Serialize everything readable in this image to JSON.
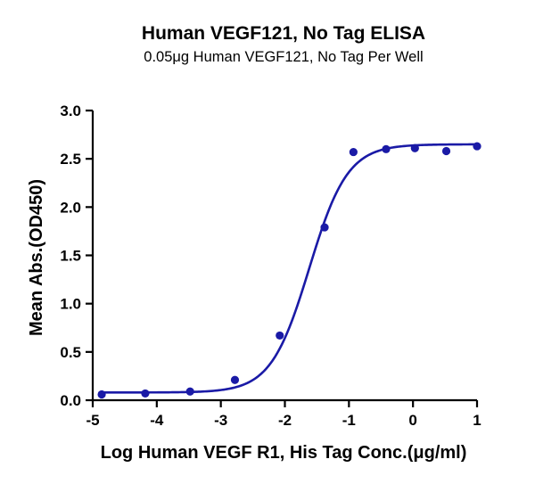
{
  "chart_data": {
    "type": "scatter",
    "title": "Human VEGF121, No Tag ELISA",
    "subtitle": "0.05μg Human VEGF121, No Tag Per Well",
    "xlabel": "Log Human VEGF R1, His Tag Conc.(μg/ml)",
    "ylabel": "Mean Abs.(OD450)",
    "xlim": [
      -5,
      1
    ],
    "ylim": [
      0,
      3.0
    ],
    "x_ticks": [
      -5,
      -4,
      -3,
      -2,
      -1,
      0,
      1
    ],
    "x_tick_labels": [
      "-5",
      "-4",
      "-3",
      "-2",
      "-1",
      "0",
      "1"
    ],
    "y_ticks": [
      0,
      0.5,
      1.0,
      1.5,
      2.0,
      2.5,
      3.0
    ],
    "y_tick_labels": [
      "0.0",
      "0.5",
      "1.0",
      "1.5",
      "2.0",
      "2.5",
      "3.0"
    ],
    "grid": false,
    "legend": "none",
    "series": [
      {
        "x": [
          -4.86,
          -4.18,
          -3.48,
          -2.78,
          -2.08,
          -1.38,
          -0.93,
          -0.42,
          0.03,
          0.52,
          1.0
        ],
        "y": [
          0.06,
          0.07,
          0.09,
          0.21,
          0.67,
          1.79,
          2.57,
          2.6,
          2.61,
          2.58,
          2.63
        ],
        "color": "#1a1aa6"
      }
    ],
    "fit_curve": {
      "model": "4PL",
      "bottom": 0.08,
      "top": 2.65,
      "log_ec50": -1.62,
      "hill_slope": 1.45,
      "color": "#1a1aa6"
    }
  }
}
